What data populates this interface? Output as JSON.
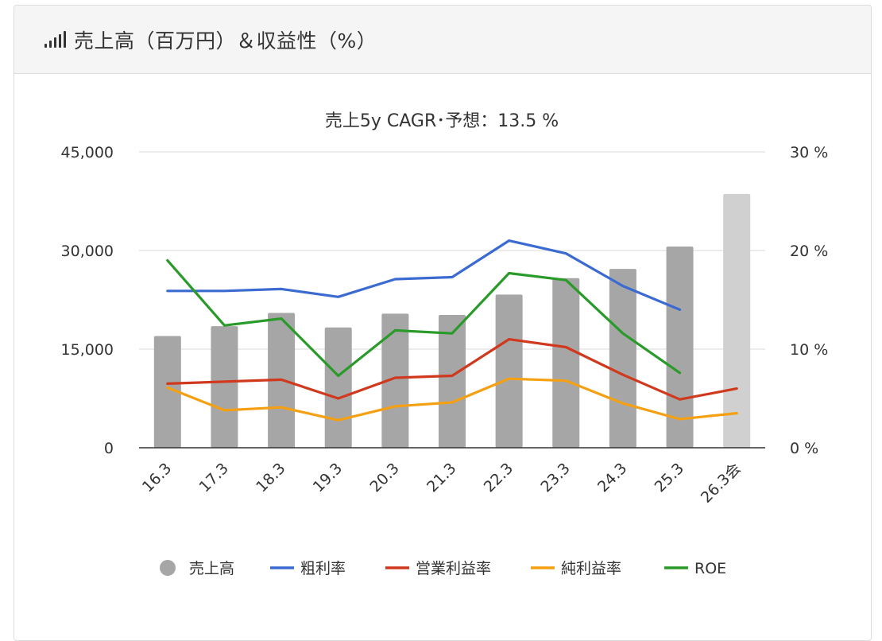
{
  "header": {
    "icon": "signal-bars-icon",
    "title": "売上高（百万円）＆収益性（%）"
  },
  "chart_data": {
    "type": "bar+line",
    "title": "売上5y CAGR･予想：13.5 %",
    "categories": [
      "16.3",
      "17.3",
      "18.3",
      "19.3",
      "20.3",
      "21.3",
      "22.3",
      "23.3",
      "24.3",
      "25.3",
      "26.3会"
    ],
    "left_axis": {
      "ylim": [
        0,
        45000
      ],
      "ticks": [
        "0",
        "15,000",
        "30,000",
        "45,000"
      ]
    },
    "right_axis": {
      "ylim": [
        0,
        30
      ],
      "ticks": [
        "0 %",
        "10 %",
        "20 %",
        "30 %"
      ]
    },
    "bars": {
      "name": "売上高",
      "color": "#a6a6a6",
      "forecast_color": "#d0d0d0",
      "values": [
        17000,
        18500,
        20500,
        18300,
        20400,
        20200,
        23300,
        25800,
        27200,
        30600,
        38600
      ]
    },
    "series": [
      {
        "name": "粗利率",
        "color": "#3b6bd0",
        "values": [
          15.9,
          15.9,
          16.1,
          15.3,
          17.1,
          17.3,
          21.0,
          19.7,
          16.4,
          14.0,
          null
        ]
      },
      {
        "name": "営業利益率",
        "color": "#d0391e",
        "values": [
          6.5,
          6.7,
          6.9,
          5.0,
          7.1,
          7.3,
          11.0,
          10.2,
          7.4,
          4.9,
          6.0
        ]
      },
      {
        "name": "純利益率",
        "color": "#f4a012",
        "values": [
          6.1,
          3.8,
          4.1,
          2.8,
          4.2,
          4.6,
          7.0,
          6.8,
          4.5,
          2.9,
          3.5
        ]
      },
      {
        "name": "ROE",
        "color": "#2a9a2a",
        "values": [
          19.0,
          12.4,
          13.1,
          7.3,
          11.9,
          11.6,
          17.7,
          17.0,
          11.6,
          7.6,
          null
        ]
      }
    ],
    "legend_position": "bottom",
    "grid": true
  }
}
